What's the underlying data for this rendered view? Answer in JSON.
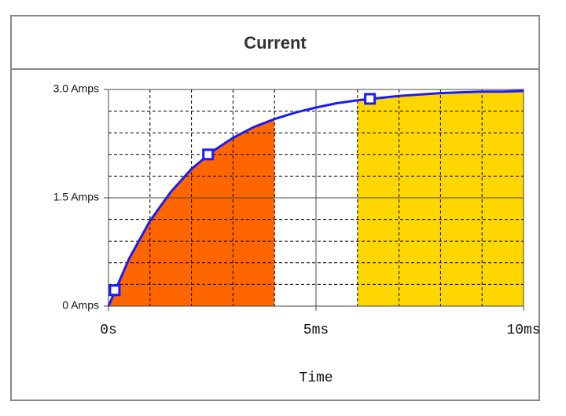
{
  "chart_data": {
    "type": "line",
    "title": "Current",
    "xlabel": "Time",
    "xlim": [
      0,
      10
    ],
    "ylim": [
      0,
      3
    ],
    "xticks": [
      {
        "value": 0,
        "label": "0s"
      },
      {
        "value": 5,
        "label": "5ms"
      },
      {
        "value": 10,
        "label": "10ms"
      }
    ],
    "yticks": [
      {
        "value": 0,
        "label": "0 Amps"
      },
      {
        "value": 1.5,
        "label": "1.5 Amps"
      },
      {
        "value": 3,
        "label": "3.0 Amps"
      }
    ],
    "xminor": [
      1,
      2,
      3,
      4,
      6,
      7,
      8,
      9
    ],
    "yminor": [
      0.3,
      0.6,
      0.9,
      1.2,
      1.8,
      2.1,
      2.4,
      2.7
    ],
    "grid": true,
    "x": [
      0,
      0.5,
      1,
      1.5,
      2,
      2.5,
      3,
      3.5,
      4,
      4.5,
      5,
      5.5,
      6,
      6.5,
      7,
      7.5,
      8,
      8.5,
      9,
      9.5,
      10
    ],
    "series": [
      {
        "color": "#1a1aff",
        "values": [
          0,
          0.66,
          1.18,
          1.58,
          1.9,
          2.14,
          2.33,
          2.48,
          2.59,
          2.68,
          2.75,
          2.81,
          2.85,
          2.88,
          2.91,
          2.93,
          2.95,
          2.96,
          2.97,
          2.97,
          2.98
        ]
      }
    ],
    "markers": {
      "color": "#1a1aff",
      "x": [
        0.15,
        2.4,
        6.3
      ],
      "values": [
        0.22,
        2.1,
        2.87
      ]
    },
    "shaded_regions": [
      {
        "from": 0,
        "to": 4,
        "color": "#ff6600"
      },
      {
        "from": 6,
        "to": 10,
        "color": "#ffd700"
      }
    ]
  }
}
